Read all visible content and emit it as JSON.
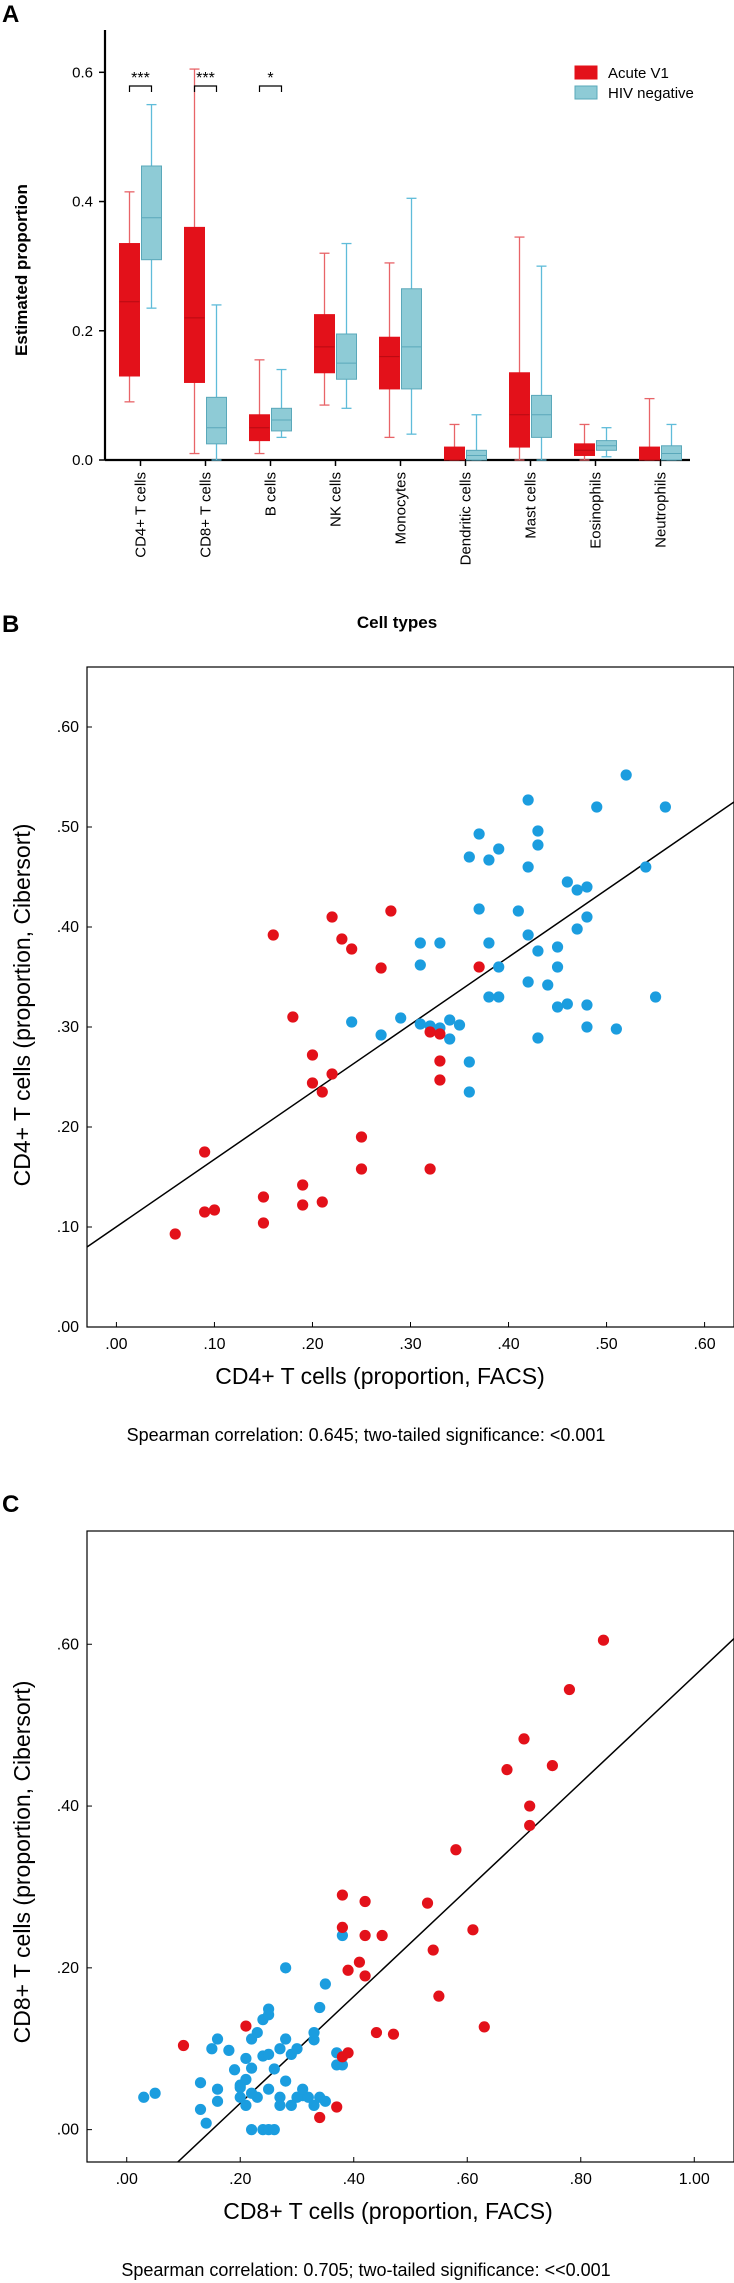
{
  "colors": {
    "acute": "#e3111a",
    "acute_whisker": "#e86468",
    "hiv_neg": "#8ecbd6",
    "hiv_neg_border": "#5aa8ba",
    "hiv_neg_whisker": "#5fbcd9",
    "dot_blue": "#1b9ddf",
    "dot_red": "#e3111a"
  },
  "chart_data": [
    {
      "panel": "A",
      "type": "box",
      "ylabel": "Estimated proportion",
      "xlabel": "Cell types",
      "ylim": [
        0,
        0.65
      ],
      "yticks": [
        "0.0",
        "0.2",
        "0.4",
        "0.6"
      ],
      "legend": [
        "Acute V1",
        "HIV negative"
      ],
      "legend_position": "top-right",
      "categories": [
        "CD4+ T cells",
        "CD8+ T cells",
        "B cells",
        "NK cells",
        "Monocytes",
        "Dendritic cells",
        "Mast cells",
        "Eosinophils",
        "Neutrophils"
      ],
      "significance": [
        "***",
        "***",
        "*",
        "",
        "",
        "",
        "",
        "",
        ""
      ],
      "series": [
        {
          "name": "Acute V1",
          "boxes": [
            {
              "min": 0.09,
              "q1": 0.13,
              "median": 0.245,
              "q3": 0.335,
              "max": 0.415
            },
            {
              "min": 0.01,
              "q1": 0.12,
              "median": 0.22,
              "q3": 0.36,
              "max": 0.605
            },
            {
              "min": 0.01,
              "q1": 0.03,
              "median": 0.05,
              "q3": 0.07,
              "max": 0.155
            },
            {
              "min": 0.085,
              "q1": 0.135,
              "median": 0.175,
              "q3": 0.225,
              "max": 0.32
            },
            {
              "min": 0.035,
              "q1": 0.11,
              "median": 0.16,
              "q3": 0.19,
              "max": 0.305
            },
            {
              "min": 0.0,
              "q1": 0.0,
              "median": 0.0,
              "q3": 0.02,
              "max": 0.055
            },
            {
              "min": 0.0,
              "q1": 0.02,
              "median": 0.07,
              "q3": 0.135,
              "max": 0.345
            },
            {
              "min": 0.0,
              "q1": 0.007,
              "median": 0.015,
              "q3": 0.025,
              "max": 0.055
            },
            {
              "min": 0.0,
              "q1": 0.0,
              "median": 0.0,
              "q3": 0.02,
              "max": 0.095
            }
          ]
        },
        {
          "name": "HIV negative",
          "boxes": [
            {
              "min": 0.235,
              "q1": 0.31,
              "median": 0.375,
              "q3": 0.455,
              "max": 0.55
            },
            {
              "min": 0.0,
              "q1": 0.025,
              "median": 0.05,
              "q3": 0.097,
              "max": 0.24
            },
            {
              "min": 0.035,
              "q1": 0.045,
              "median": 0.062,
              "q3": 0.08,
              "max": 0.14
            },
            {
              "min": 0.08,
              "q1": 0.125,
              "median": 0.15,
              "q3": 0.195,
              "max": 0.335
            },
            {
              "min": 0.04,
              "q1": 0.11,
              "median": 0.175,
              "q3": 0.265,
              "max": 0.405
            },
            {
              "min": 0.0,
              "q1": 0.0,
              "median": 0.007,
              "q3": 0.015,
              "max": 0.07
            },
            {
              "min": 0.0,
              "q1": 0.035,
              "median": 0.07,
              "q3": 0.1,
              "max": 0.3
            },
            {
              "min": 0.005,
              "q1": 0.015,
              "median": 0.022,
              "q3": 0.03,
              "max": 0.05
            },
            {
              "min": 0.0,
              "q1": 0.0,
              "median": 0.01,
              "q3": 0.022,
              "max": 0.055
            }
          ]
        }
      ]
    },
    {
      "panel": "B",
      "type": "scatter",
      "xlabel": "CD4+ T cells (proportion, FACS)",
      "ylabel": "CD4+ T cells (proportion, Cibersort)",
      "xlim": [
        -0.03,
        0.63
      ],
      "ylim": [
        0.0,
        0.66
      ],
      "xticks": [
        0.0,
        0.1,
        0.2,
        0.3,
        0.4,
        0.5,
        0.6
      ],
      "xtick_labels": [
        ".00",
        ".10",
        ".20",
        ".30",
        ".40",
        ".50",
        ".60"
      ],
      "yticks": [
        0.0,
        0.1,
        0.2,
        0.3,
        0.4,
        0.5,
        0.6
      ],
      "ytick_labels": [
        ".00",
        ".10",
        ".20",
        ".30",
        ".40",
        ".50",
        ".60"
      ],
      "fit_line": {
        "x0": -0.03,
        "y0": 0.08,
        "x1": 0.63,
        "y1": 0.525
      },
      "caption": "Spearman correlation: 0.645;   two-tailed significance: <0.001",
      "series": [
        {
          "name": "HIV negative",
          "points": [
            [
              0.52,
              0.552
            ],
            [
              0.56,
              0.52
            ],
            [
              0.49,
              0.52
            ],
            [
              0.42,
              0.527
            ],
            [
              0.43,
              0.496
            ],
            [
              0.43,
              0.482
            ],
            [
              0.37,
              0.493
            ],
            [
              0.38,
              0.467
            ],
            [
              0.39,
              0.478
            ],
            [
              0.36,
              0.47
            ],
            [
              0.42,
              0.46
            ],
            [
              0.46,
              0.445
            ],
            [
              0.47,
              0.437
            ],
            [
              0.48,
              0.44
            ],
            [
              0.41,
              0.416
            ],
            [
              0.37,
              0.418
            ],
            [
              0.33,
              0.384
            ],
            [
              0.31,
              0.384
            ],
            [
              0.31,
              0.362
            ],
            [
              0.38,
              0.384
            ],
            [
              0.42,
              0.392
            ],
            [
              0.45,
              0.38
            ],
            [
              0.43,
              0.376
            ],
            [
              0.48,
              0.41
            ],
            [
              0.47,
              0.398
            ],
            [
              0.54,
              0.46
            ],
            [
              0.38,
              0.33
            ],
            [
              0.39,
              0.33
            ],
            [
              0.39,
              0.36
            ],
            [
              0.45,
              0.36
            ],
            [
              0.44,
              0.342
            ],
            [
              0.46,
              0.323
            ],
            [
              0.45,
              0.32
            ],
            [
              0.48,
              0.322
            ],
            [
              0.55,
              0.33
            ],
            [
              0.42,
              0.345
            ],
            [
              0.43,
              0.289
            ],
            [
              0.48,
              0.3
            ],
            [
              0.51,
              0.298
            ],
            [
              0.24,
              0.305
            ],
            [
              0.27,
              0.292
            ],
            [
              0.29,
              0.309
            ],
            [
              0.31,
              0.303
            ],
            [
              0.32,
              0.301
            ],
            [
              0.33,
              0.299
            ],
            [
              0.34,
              0.307
            ],
            [
              0.35,
              0.302
            ],
            [
              0.34,
              0.288
            ],
            [
              0.36,
              0.265
            ],
            [
              0.36,
              0.235
            ]
          ]
        },
        {
          "name": "Acute V1",
          "points": [
            [
              0.16,
              0.392
            ],
            [
              0.22,
              0.41
            ],
            [
              0.28,
              0.416
            ],
            [
              0.23,
              0.388
            ],
            [
              0.24,
              0.378
            ],
            [
              0.27,
              0.359
            ],
            [
              0.37,
              0.36
            ],
            [
              0.18,
              0.31
            ],
            [
              0.32,
              0.295
            ],
            [
              0.33,
              0.293
            ],
            [
              0.33,
              0.266
            ],
            [
              0.33,
              0.247
            ],
            [
              0.2,
              0.272
            ],
            [
              0.22,
              0.253
            ],
            [
              0.2,
              0.244
            ],
            [
              0.21,
              0.235
            ],
            [
              0.25,
              0.19
            ],
            [
              0.25,
              0.158
            ],
            [
              0.32,
              0.158
            ],
            [
              0.09,
              0.175
            ],
            [
              0.19,
              0.142
            ],
            [
              0.15,
              0.13
            ],
            [
              0.21,
              0.125
            ],
            [
              0.19,
              0.122
            ],
            [
              0.09,
              0.115
            ],
            [
              0.1,
              0.117
            ],
            [
              0.15,
              0.104
            ],
            [
              0.06,
              0.093
            ]
          ]
        }
      ]
    },
    {
      "panel": "C",
      "type": "scatter",
      "xlabel": "CD8+ T cells (proportion, FACS)",
      "ylabel": "CD8+ T cells (proportion, Cibersort)",
      "xlim": [
        -0.07,
        1.07
      ],
      "ylim": [
        -0.04,
        0.74
      ],
      "xticks": [
        0.0,
        0.2,
        0.4,
        0.6,
        0.8,
        1.0
      ],
      "xtick_labels": [
        ".00",
        ".20",
        ".40",
        ".60",
        ".80",
        "1.00"
      ],
      "yticks": [
        0.0,
        0.2,
        0.4,
        0.6
      ],
      "ytick_labels": [
        ".00",
        ".20",
        ".40",
        ".60"
      ],
      "fit_line": {
        "x0": 0.09,
        "y0": -0.04,
        "x1": 1.07,
        "y1": 0.607
      },
      "caption": "Spearman correlation: 0.705;   two-tailed significance: <<0.001",
      "series": [
        {
          "name": "HIV negative",
          "points": [
            [
              0.03,
              0.04
            ],
            [
              0.05,
              0.045
            ],
            [
              0.13,
              0.025
            ],
            [
              0.14,
              0.008
            ],
            [
              0.13,
              0.058
            ],
            [
              0.16,
              0.05
            ],
            [
              0.15,
              0.1
            ],
            [
              0.16,
              0.112
            ],
            [
              0.18,
              0.098
            ],
            [
              0.19,
              0.074
            ],
            [
              0.2,
              0.04
            ],
            [
              0.21,
              0.03
            ],
            [
              0.2,
              0.055
            ],
            [
              0.21,
              0.062
            ],
            [
              0.22,
              0.076
            ],
            [
              0.21,
              0.088
            ],
            [
              0.22,
              0.112
            ],
            [
              0.23,
              0.12
            ],
            [
              0.24,
              0.136
            ],
            [
              0.25,
              0.142
            ],
            [
              0.25,
              0.149
            ],
            [
              0.24,
              0.091
            ],
            [
              0.25,
              0.093
            ],
            [
              0.26,
              0.075
            ],
            [
              0.27,
              0.1
            ],
            [
              0.28,
              0.112
            ],
            [
              0.29,
              0.093
            ],
            [
              0.3,
              0.1
            ],
            [
              0.31,
              0.042
            ],
            [
              0.33,
              0.111
            ],
            [
              0.33,
              0.12
            ],
            [
              0.28,
              0.2
            ],
            [
              0.34,
              0.151
            ],
            [
              0.35,
              0.18
            ],
            [
              0.38,
              0.24
            ],
            [
              0.37,
              0.08
            ],
            [
              0.38,
              0.08
            ],
            [
              0.37,
              0.095
            ],
            [
              0.25,
              0.05
            ],
            [
              0.27,
              0.04
            ],
            [
              0.29,
              0.03
            ],
            [
              0.32,
              0.04
            ],
            [
              0.33,
              0.03
            ],
            [
              0.22,
              0.045
            ],
            [
              0.24,
              0.0
            ],
            [
              0.25,
              0.0
            ],
            [
              0.26,
              0.0
            ],
            [
              0.27,
              0.03
            ],
            [
              0.28,
              0.06
            ],
            [
              0.3,
              0.04
            ],
            [
              0.31,
              0.05
            ],
            [
              0.34,
              0.04
            ],
            [
              0.35,
              0.035
            ],
            [
              0.23,
              0.04
            ],
            [
              0.2,
              0.052
            ],
            [
              0.16,
              0.035
            ],
            [
              0.22,
              0.0
            ]
          ]
        },
        {
          "name": "Acute V1",
          "points": [
            [
              0.84,
              0.605
            ],
            [
              0.78,
              0.544
            ],
            [
              0.7,
              0.483
            ],
            [
              0.75,
              0.45
            ],
            [
              0.67,
              0.445
            ],
            [
              0.71,
              0.4
            ],
            [
              0.71,
              0.376
            ],
            [
              0.58,
              0.346
            ],
            [
              0.53,
              0.28
            ],
            [
              0.61,
              0.247
            ],
            [
              0.54,
              0.222
            ],
            [
              0.55,
              0.165
            ],
            [
              0.63,
              0.127
            ],
            [
              0.47,
              0.118
            ],
            [
              0.44,
              0.12
            ],
            [
              0.38,
              0.29
            ],
            [
              0.42,
              0.282
            ],
            [
              0.38,
              0.25
            ],
            [
              0.42,
              0.24
            ],
            [
              0.45,
              0.24
            ],
            [
              0.41,
              0.207
            ],
            [
              0.39,
              0.197
            ],
            [
              0.42,
              0.19
            ],
            [
              0.38,
              0.09
            ],
            [
              0.39,
              0.095
            ],
            [
              0.37,
              0.028
            ],
            [
              0.34,
              0.015
            ],
            [
              0.1,
              0.104
            ],
            [
              0.21,
              0.128
            ]
          ]
        }
      ]
    }
  ]
}
